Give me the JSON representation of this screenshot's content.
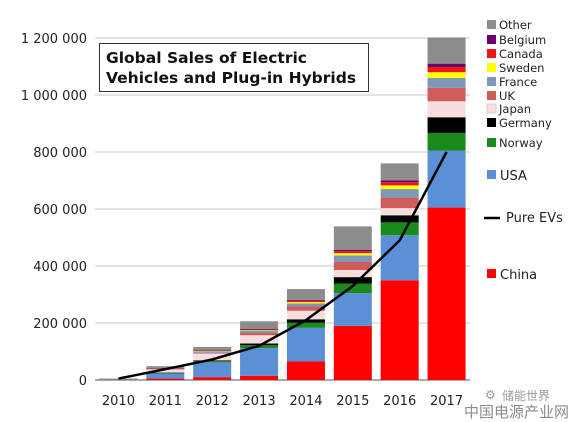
{
  "chart_data": {
    "type": "bar",
    "stacked": true,
    "title": "Global Sales of Electric Vehicles and Plug-in Hybrids",
    "categories": [
      "2010",
      "2011",
      "2012",
      "2013",
      "2014",
      "2015",
      "2016",
      "2017"
    ],
    "ylim": [
      0,
      1200000
    ],
    "yticks": [
      0,
      200000,
      400000,
      600000,
      800000,
      1000000,
      1200000
    ],
    "ytick_labels": [
      "0",
      "200 000",
      "400 000",
      "600 000",
      "800 000",
      "1 000 000",
      "1 200 000"
    ],
    "grid": "horizontal",
    "legend_position": "right",
    "series": [
      {
        "name": "China",
        "color": "#ff0000",
        "values": [
          2000,
          5000,
          10000,
          15000,
          65000,
          190000,
          350000,
          605000
        ]
      },
      {
        "name": "USA",
        "color": "#5b8fd6",
        "values": [
          500,
          18000,
          52000,
          97000,
          118000,
          115000,
          158000,
          200000
        ]
      },
      {
        "name": "Norway",
        "color": "#1a8a1a",
        "values": [
          200,
          1500,
          4000,
          10000,
          18000,
          33000,
          45000,
          62000
        ]
      },
      {
        "name": "Germany",
        "color": "#000000",
        "values": [
          100,
          1500,
          3000,
          6000,
          12000,
          23000,
          25000,
          55000
        ]
      },
      {
        "name": "Japan",
        "color": "#f6dede",
        "values": [
          100,
          12000,
          24000,
          29000,
          30000,
          25000,
          25000,
          56000
        ]
      },
      {
        "name": "UK",
        "color": "#cf5b5b",
        "values": [
          100,
          1000,
          2500,
          8000,
          15000,
          28000,
          37000,
          47000
        ]
      },
      {
        "name": "France",
        "color": "#7e99b8",
        "values": [
          100,
          2500,
          5500,
          9000,
          11000,
          23000,
          30000,
          35000
        ]
      },
      {
        "name": "Sweden",
        "color": "#ffff00",
        "values": [
          0,
          300,
          900,
          1500,
          4500,
          8000,
          13000,
          20000
        ]
      },
      {
        "name": "Canada",
        "color": "#ee1515",
        "values": [
          0,
          500,
          1500,
          2000,
          5000,
          7000,
          11000,
          18000
        ]
      },
      {
        "name": "Belgium",
        "color": "#6b006b",
        "values": [
          0,
          200,
          500,
          1500,
          2500,
          5000,
          6000,
          12000
        ]
      },
      {
        "name": "Other",
        "color": "#8c8c8c",
        "values": [
          2000,
          6000,
          12000,
          27000,
          38000,
          82000,
          60000,
          92000
        ]
      }
    ],
    "line_series": {
      "name": "Pure EVs",
      "color": "#000000",
      "values": [
        5000,
        38000,
        72000,
        120000,
        210000,
        330000,
        490000,
        800000
      ]
    }
  },
  "watermark": {
    "line1": "储能世界",
    "line2": "中国电源产业网"
  }
}
